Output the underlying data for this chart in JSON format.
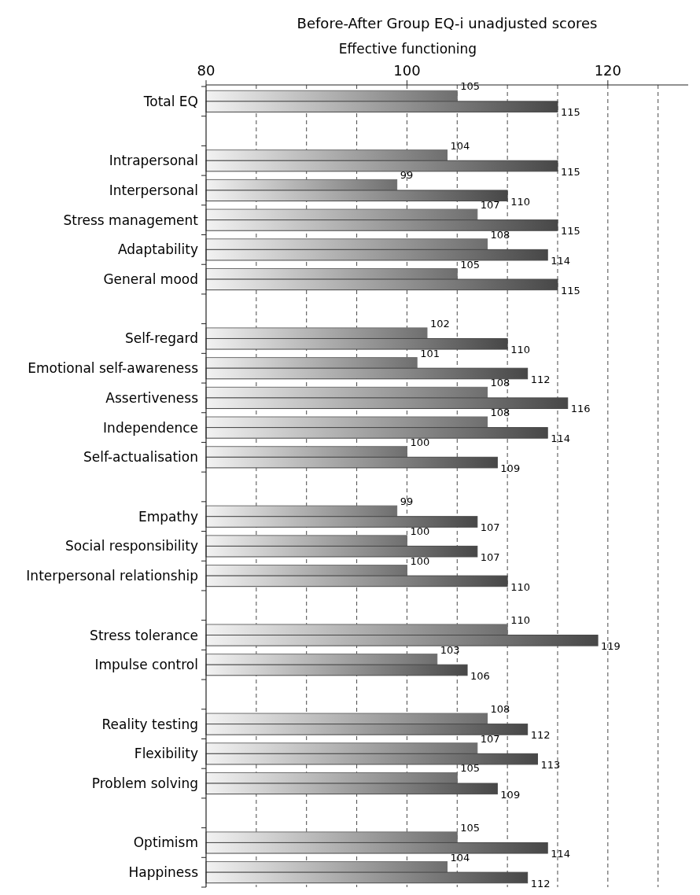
{
  "chart_data": {
    "type": "bar",
    "orientation": "horizontal",
    "title": "Before-After Group EQ-i unadjusted scores",
    "xlabel": "Effective functioning",
    "categories": [
      "Total EQ",
      null,
      "Intrapersonal",
      "Interpersonal",
      "Stress management",
      "Adaptability",
      "General mood",
      null,
      "Self-regard",
      "Emotional self-awareness",
      "Assertiveness",
      "Independence",
      "Self-actualisation",
      null,
      "Empathy",
      "Social responsibility",
      "Interpersonal relationship",
      null,
      "Stress tolerance",
      "Impulse control",
      null,
      "Reality testing",
      "Flexibility",
      "Problem solving",
      null,
      "Optimism",
      "Happiness"
    ],
    "series": [
      {
        "color": "#6e6e6e",
        "values": [
          105,
          null,
          104,
          99,
          107,
          108,
          105,
          null,
          102,
          101,
          108,
          108,
          100,
          null,
          99,
          100,
          100,
          null,
          110,
          103,
          null,
          108,
          107,
          105,
          null,
          105,
          104
        ]
      },
      {
        "color": "#474747",
        "values": [
          115,
          null,
          115,
          110,
          115,
          114,
          115,
          null,
          110,
          112,
          116,
          114,
          109,
          null,
          107,
          107,
          110,
          null,
          119,
          106,
          null,
          112,
          113,
          109,
          null,
          114,
          112
        ]
      }
    ],
    "xlim": [
      80,
      128
    ],
    "xticks": [
      80,
      {
        "value": 85,
        "label": null
      },
      {
        "value": 90,
        "label": null
      },
      {
        "value": 95,
        "label": null
      },
      100,
      {
        "value": 105,
        "label": null
      },
      {
        "value": 110,
        "label": null
      },
      {
        "value": 115,
        "label": null
      },
      120,
      {
        "value": 125,
        "label": null
      }
    ],
    "grid": "x",
    "data_labels": true
  }
}
